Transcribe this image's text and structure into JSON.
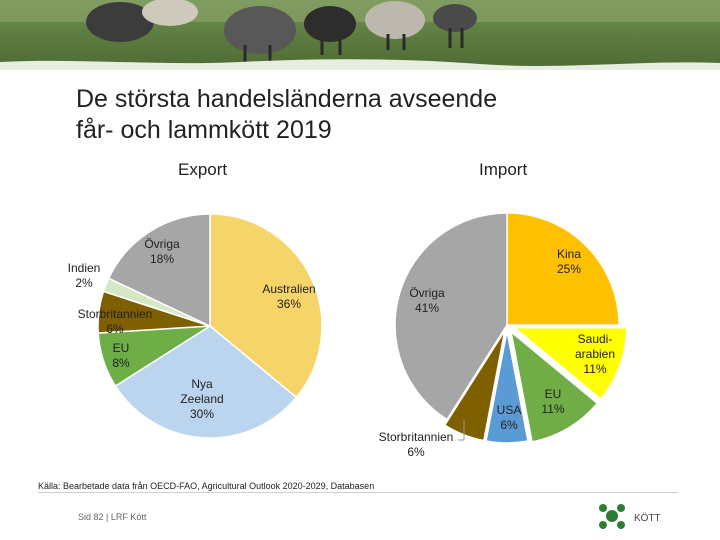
{
  "slide": {
    "title_line1": "De största handelsländerna avseende",
    "title_line2": "får- och lammkött 2019",
    "source": "Källa: Bearbetade data från OECD-FAO, Agricultural Outlook 2020-2029, Databasen",
    "footer": "Sid 82 | LRF Kött",
    "logo_text": "KÖTT"
  },
  "chart_data": [
    {
      "type": "pie",
      "title": "Export",
      "slices": [
        {
          "name": "Australien",
          "value": 36,
          "label": "36%",
          "color": "#F5D46A"
        },
        {
          "name": "Nya Zeeland",
          "value": 30,
          "label": "30%",
          "color": "#BCD5EE"
        },
        {
          "name": "EU",
          "value": 8,
          "label": "8%",
          "color": "#6FAD46"
        },
        {
          "name": "Storbritannien",
          "value": 6,
          "label": "6%",
          "color": "#7F6000"
        },
        {
          "name": "Indien",
          "value": 2,
          "label": "2%",
          "color": "#D5E8C4"
        },
        {
          "name": "Övriga",
          "value": 18,
          "label": "18%",
          "color": "#A6A6A6"
        }
      ]
    },
    {
      "type": "pie",
      "title": "Import",
      "slices": [
        {
          "name": "Kina",
          "value": 25,
          "label": "25%",
          "color": "#FFC000"
        },
        {
          "name": "Saudi-arabien",
          "value": 11,
          "label": "11%",
          "color": "#FFFF00"
        },
        {
          "name": "EU",
          "value": 11,
          "label": "11%",
          "color": "#70AD47"
        },
        {
          "name": "USA",
          "value": 6,
          "label": "6%",
          "color": "#5B9BD5"
        },
        {
          "name": "Storbritannien",
          "value": 6,
          "label": "6%",
          "color": "#7F6000"
        },
        {
          "name": "Övriga",
          "value": 41,
          "label": "41%",
          "color": "#A6A6A6"
        }
      ]
    }
  ]
}
